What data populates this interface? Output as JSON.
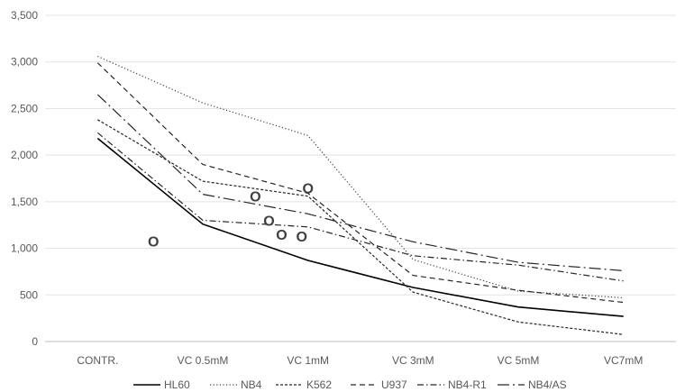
{
  "chart_data": {
    "type": "line",
    "title": "",
    "xlabel": "",
    "ylabel": "",
    "categories": [
      "CONTR.",
      "VC 0.5mM",
      "VC 1mM",
      "VC 3mM",
      "VC 5mM",
      "VC7mM"
    ],
    "ylim": [
      0,
      3500
    ],
    "yticks": [
      "0",
      "500",
      "1,000",
      "1,500",
      "2,000",
      "2,500",
      "3,000",
      "3,500"
    ],
    "grid": "horizontal",
    "legend_position": "bottom",
    "series": [
      {
        "name": "HL60",
        "values": [
          2180,
          1260,
          870,
          580,
          370,
          270
        ],
        "color": "#000000",
        "dash": "solid"
      },
      {
        "name": "NB4",
        "values": [
          3060,
          2560,
          2210,
          880,
          540,
          470
        ],
        "color": "#404040",
        "dash": "dot"
      },
      {
        "name": "K562",
        "values": [
          2380,
          1720,
          1560,
          530,
          210,
          75
        ],
        "color": "#262626",
        "dash": "shortdash"
      },
      {
        "name": "U937",
        "values": [
          2990,
          1900,
          1590,
          710,
          550,
          420
        ],
        "color": "#262626",
        "dash": "dash"
      },
      {
        "name": "NB4-R1",
        "values": [
          2240,
          1300,
          1230,
          920,
          820,
          650
        ],
        "color": "#262626",
        "dash": "dashdot"
      },
      {
        "name": "NB4/AS",
        "values": [
          2650,
          1580,
          1370,
          1070,
          850,
          760
        ],
        "color": "#262626",
        "dash": "longdashdot"
      }
    ],
    "annotations": [
      {
        "text": "O",
        "x": 0.53,
        "y": 1080
      },
      {
        "text": "O",
        "x": 1.5,
        "y": 1560
      },
      {
        "text": "O",
        "x": 1.63,
        "y": 1300
      },
      {
        "text": "O",
        "x": 1.75,
        "y": 1150
      },
      {
        "text": "O",
        "x": 1.94,
        "y": 1130
      },
      {
        "text": "O",
        "x": 2.0,
        "y": 1650
      }
    ]
  }
}
